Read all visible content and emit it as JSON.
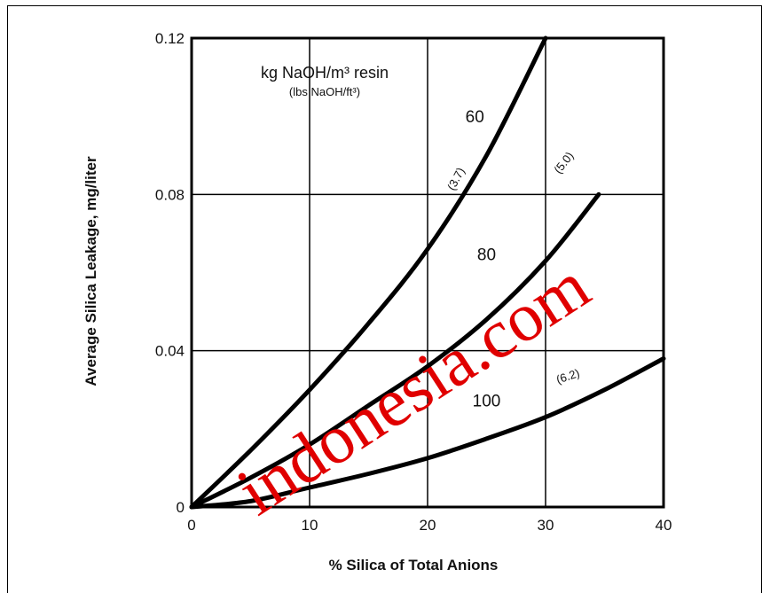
{
  "chart_data": {
    "type": "line",
    "xlabel": "% Silica of Total Anions",
    "ylabel": "Average Silica Leakage, mg/liter",
    "xlim": [
      0,
      40
    ],
    "ylim": [
      0,
      0.12
    ],
    "x_ticks": [
      "0",
      "10",
      "20",
      "30",
      "40"
    ],
    "y_ticks": [
      "0",
      "0.04",
      "0.08",
      "0.12"
    ],
    "grid": true,
    "legend": {
      "title": "kg NaOH/m³ resin",
      "subtitle": "(lbs NaOH/ft³)"
    },
    "series": [
      {
        "name": "60",
        "secondary_label": "(3.7)",
        "x": [
          0,
          5,
          10,
          15,
          20,
          25,
          30
        ],
        "y": [
          0,
          0.0145,
          0.03,
          0.047,
          0.066,
          0.09,
          0.12
        ]
      },
      {
        "name": "80",
        "secondary_label": "(5.0)",
        "x": [
          0,
          5,
          10,
          15,
          20,
          25,
          30,
          34.5
        ],
        "y": [
          0,
          0.0075,
          0.016,
          0.026,
          0.036,
          0.048,
          0.063,
          0.08
        ]
      },
      {
        "name": "100",
        "secondary_label": "(6.2)",
        "x": [
          0,
          5,
          10,
          15,
          20,
          25,
          30,
          35,
          40
        ],
        "y": [
          0,
          0.0015,
          0.005,
          0.0085,
          0.0125,
          0.0175,
          0.023,
          0.03,
          0.038
        ]
      }
    ]
  },
  "watermark": "indonesia.com"
}
